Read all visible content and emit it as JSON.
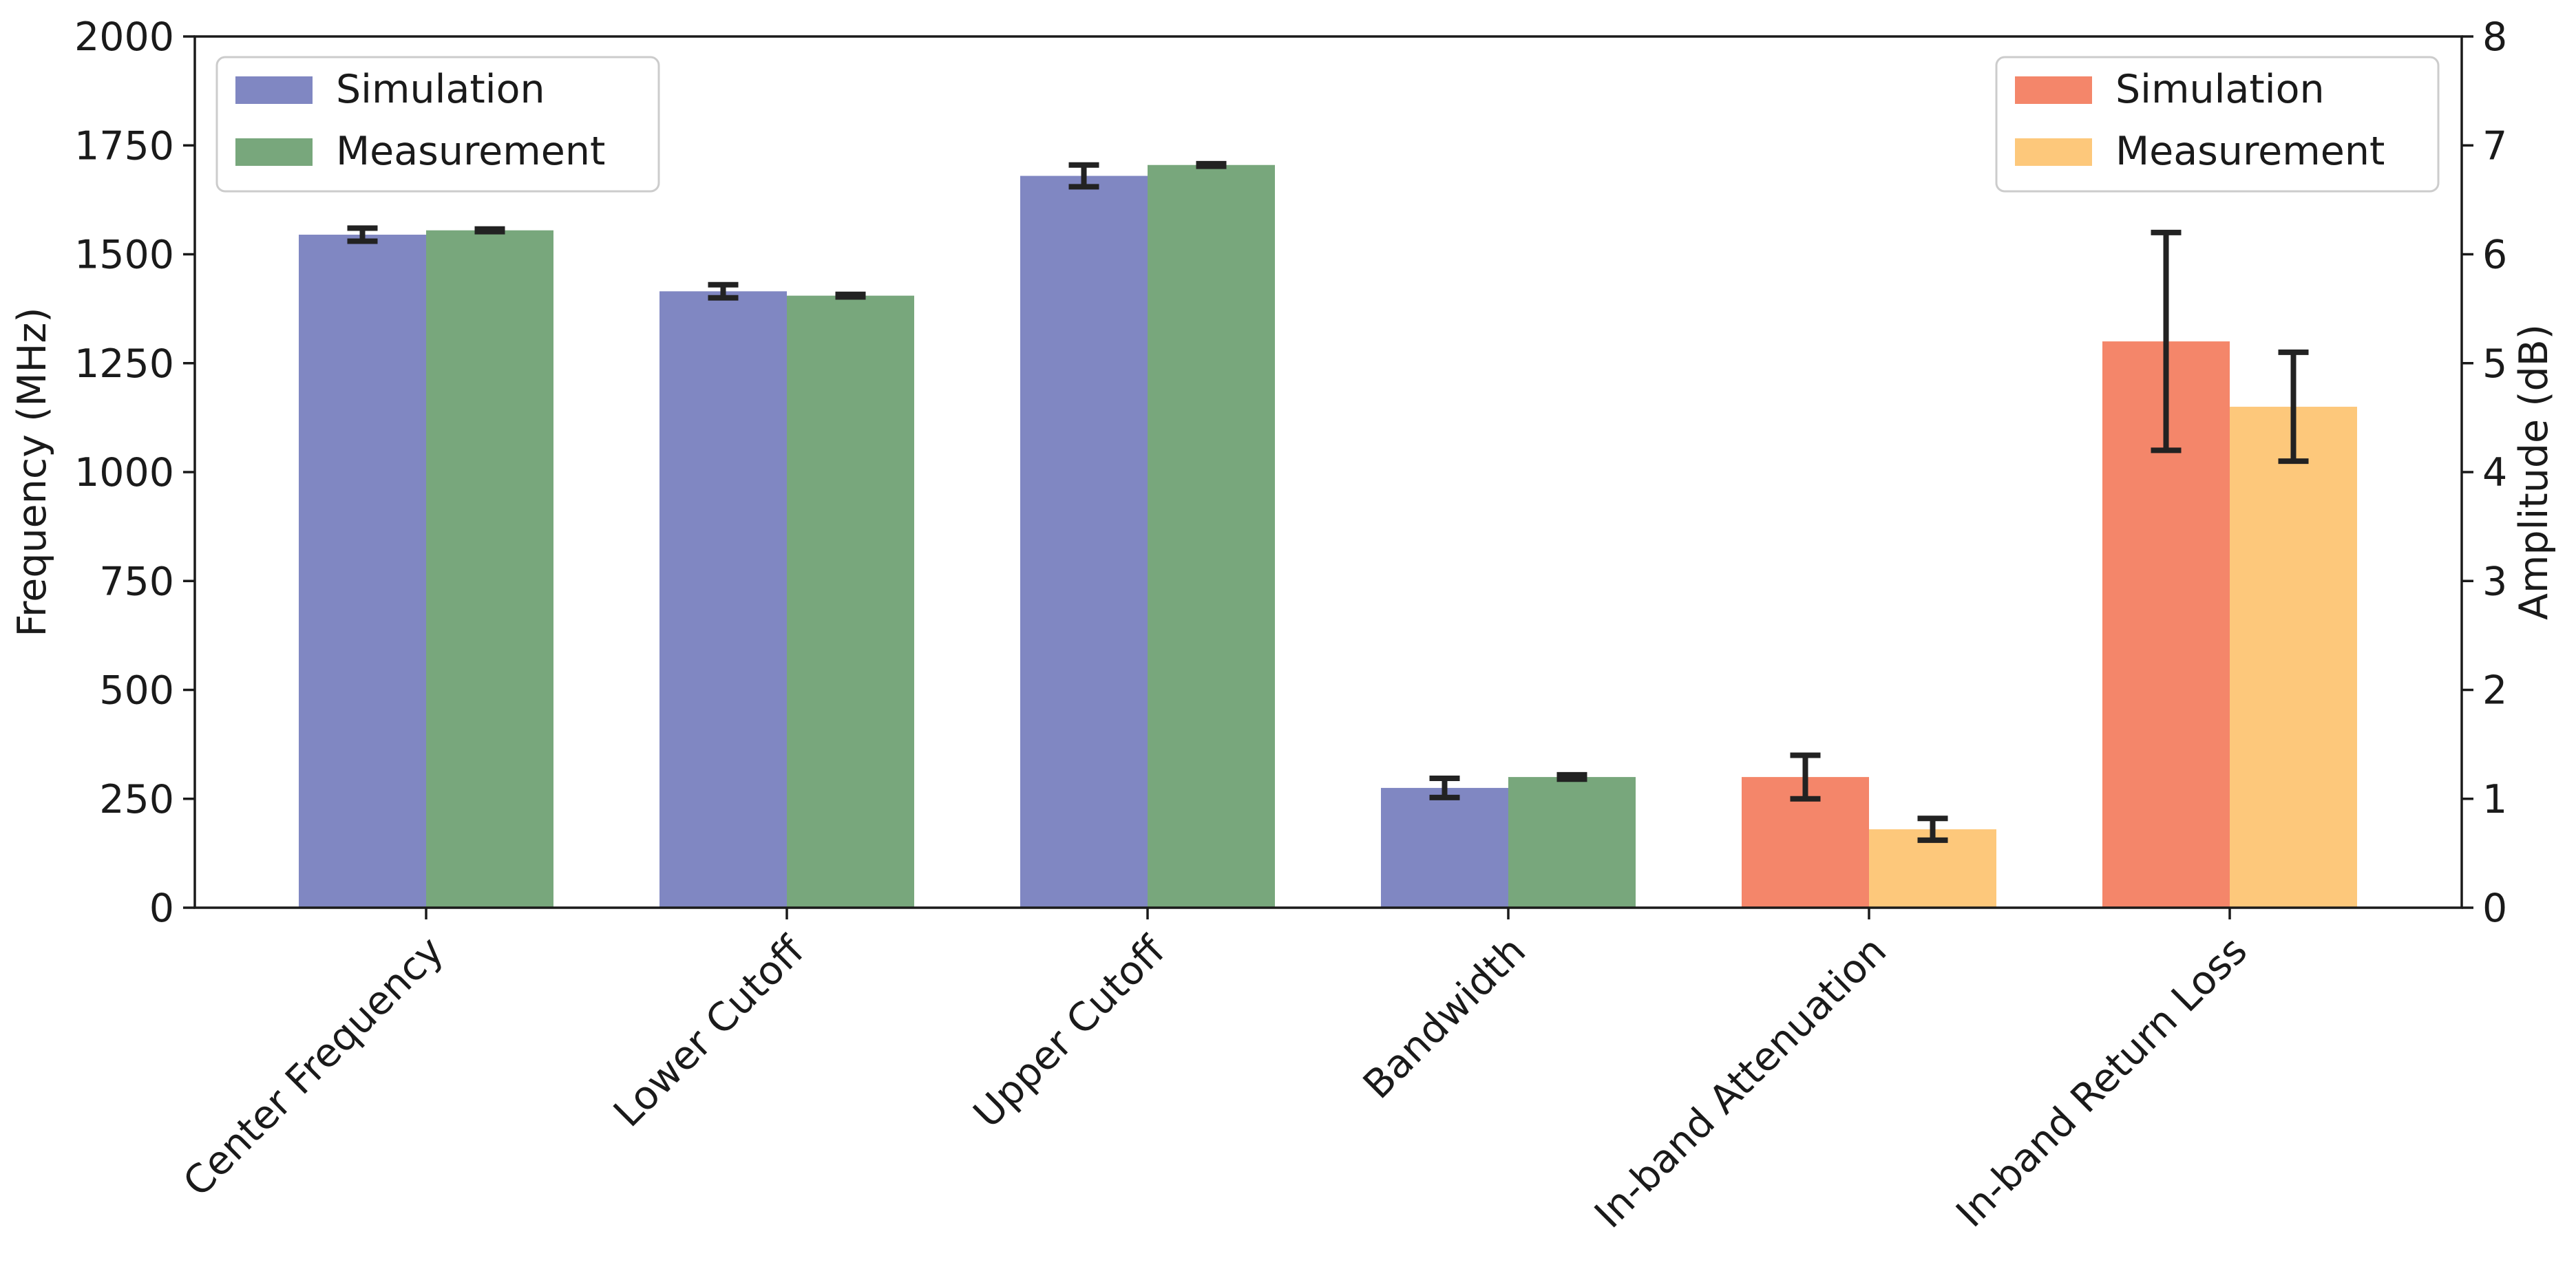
{
  "chart_data": {
    "type": "bar",
    "categories": [
      "Center Frequency",
      "Lower Cutoff",
      "Upper Cutoff",
      "Bandwidth",
      "In-band Attenuation",
      "In-band Return Loss"
    ],
    "ylabel": "Frequency (MHz)",
    "y2label": "Amplitude (dB)",
    "ylim": [
      0,
      2000
    ],
    "y2lim": [
      0,
      8
    ],
    "yticks": [
      0,
      250,
      500,
      750,
      1000,
      1250,
      1500,
      1750,
      2000
    ],
    "y2ticks": [
      0,
      1,
      2,
      3,
      4,
      5,
      6,
      7,
      8
    ],
    "grid": false,
    "frequency_series": [
      {
        "name": "Simulation",
        "color": "#8087c2",
        "values": [
          1545,
          1415,
          1680,
          275
        ],
        "errors": [
          15,
          15,
          25,
          22
        ]
      },
      {
        "name": "Measurement",
        "color": "#78a77c",
        "values": [
          1555,
          1405,
          1705,
          300
        ],
        "errors": [
          3,
          3,
          3,
          5
        ]
      }
    ],
    "amplitude_series": [
      {
        "name": "Simulation",
        "color": "#f4866a",
        "categories": [
          "In-band Attenuation",
          "In-band Return Loss"
        ],
        "values": [
          1.2,
          5.2
        ],
        "errors": [
          0.2,
          1.0
        ]
      },
      {
        "name": "Measurement",
        "color": "#fdc87b",
        "categories": [
          "In-band Attenuation",
          "In-band Return Loss"
        ],
        "values": [
          0.72,
          4.6
        ],
        "errors": [
          0.1,
          0.5
        ]
      }
    ],
    "legend_left": {
      "placement": "top-left",
      "entries": [
        "Simulation",
        "Measurement"
      ]
    },
    "legend_right": {
      "placement": "top-right",
      "entries": [
        "Simulation",
        "Measurement"
      ]
    }
  }
}
